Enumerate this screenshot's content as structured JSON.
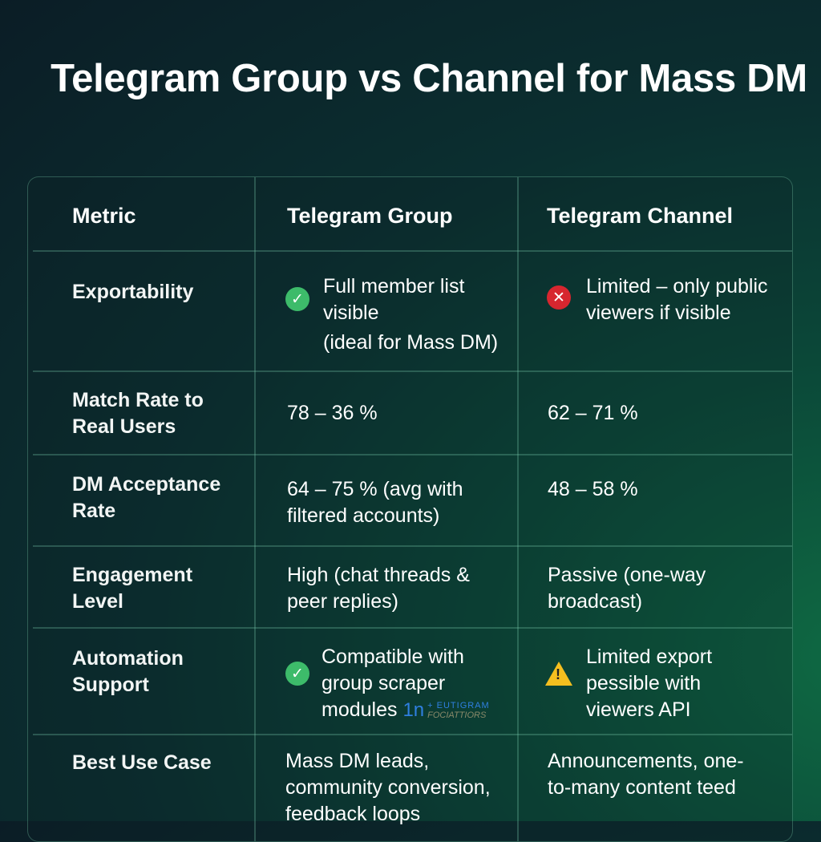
{
  "title": "Telegram Group vs Channel for Mass DM",
  "headers": [
    "Metric",
    "Telegram Group",
    "Telegram Channel"
  ],
  "rows": [
    {
      "metric": "Exportability",
      "group": "Full member list visible",
      "group_note": "(ideal for Mass DM)",
      "group_icon": "check-circle-icon",
      "channel": "Limited – only public viewers if visible",
      "channel_icon": "x-circle-icon"
    },
    {
      "metric": "Match Rate to Real Users",
      "group": "78 – 36 %",
      "channel": "62 – 71 %"
    },
    {
      "metric": "DM Acceptance Rate",
      "group": "64 – 75 % (avg with filtered accounts)",
      "channel": "48 – 58 %"
    },
    {
      "metric": "Engagement Level",
      "group": "High (chat threads & peer replies)",
      "channel": "Passive (one-way broadcast)"
    },
    {
      "metric": "Automation Support",
      "group": "Compatible with group scraper modules",
      "group_icon": "check-circle-icon",
      "group_logo": "1n",
      "group_logo_top": "+ EUTIGRAM",
      "group_logo_bottom": "FOCIATTIORS",
      "channel": "Limited export pessible with viewers API",
      "channel_icon": "warning-icon"
    },
    {
      "metric": "Best Use Case",
      "group": "Mass DM leads, community conversion, feedback loops",
      "channel": "Announcements, one-to-many content teed"
    }
  ],
  "colors": {
    "ok": "#3dbb6a",
    "error": "#d7262f",
    "warning": "#f5bf1f",
    "brand": "#2f7fe0"
  }
}
